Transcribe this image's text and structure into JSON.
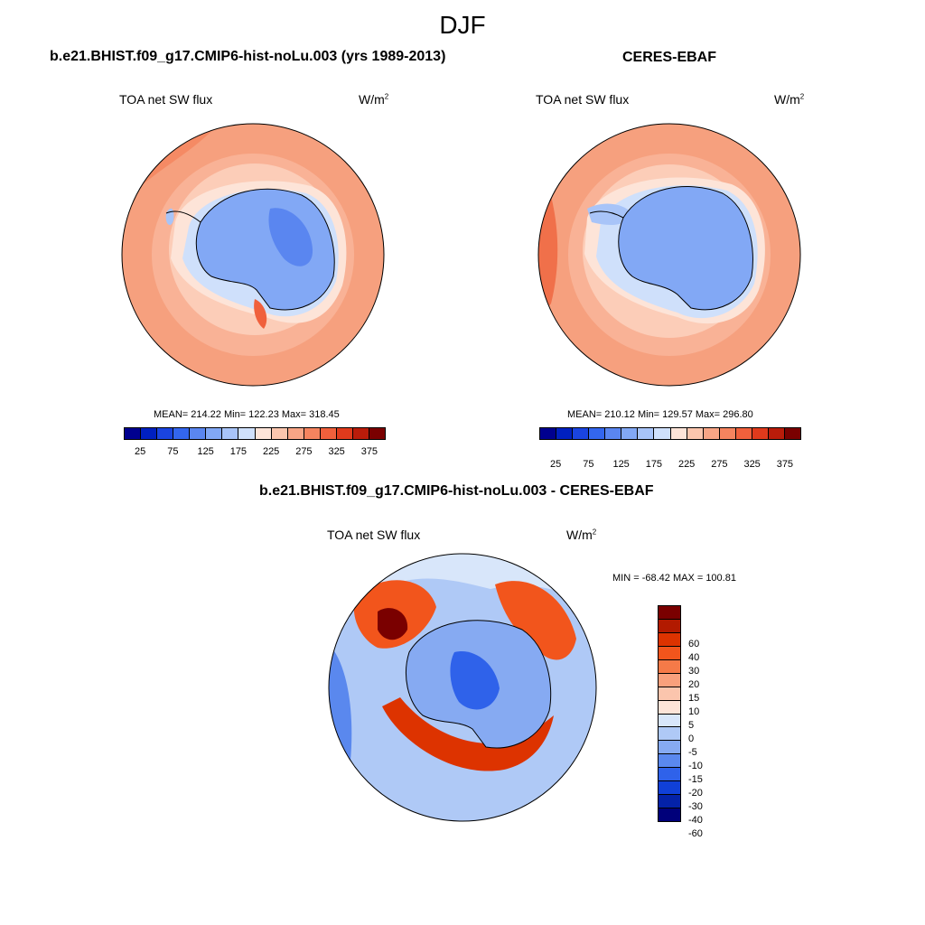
{
  "figure": {
    "title": "DJF"
  },
  "panels": [
    {
      "title": "b.e21.BHIST.f09_g17.CMIP6-hist-noLu.003 (yrs 1989-2013)",
      "variable": "TOA net SW flux",
      "units_base": "W/m",
      "units_exp": "2",
      "stats": "MEAN= 214.22  Min= 122.23  Max= 318.45"
    },
    {
      "title": "CERES-EBAF",
      "variable": "TOA net SW flux",
      "units_base": "W/m",
      "units_exp": "2",
      "stats": "MEAN= 210.12  Min= 129.57  Max= 296.80"
    },
    {
      "title": "b.e21.BHIST.f09_g17.CMIP6-hist-noLu.003 - CERES-EBAF",
      "variable": "TOA net SW flux",
      "units_base": "W/m",
      "units_exp": "2",
      "stats": "MIN = -68.42 MAX = 100.81"
    }
  ],
  "colorbar_abs": {
    "tick_labels": [
      "25",
      "75",
      "125",
      "175",
      "225",
      "275",
      "325",
      "375"
    ],
    "colors": [
      "#00008f",
      "#0020c0",
      "#1a44e0",
      "#3366ee",
      "#5a86f0",
      "#82a8f5",
      "#a8c4f8",
      "#cfe0fb",
      "#fde4d8",
      "#fbc6ae",
      "#f8a586",
      "#f5845f",
      "#f0603c",
      "#e03a1c",
      "#b91c0a",
      "#7a0000"
    ]
  },
  "colorbar_diff": {
    "tick_labels": [
      "60",
      "40",
      "30",
      "20",
      "15",
      "10",
      "5",
      "0",
      "-5",
      "-10",
      "-15",
      "-20",
      "-30",
      "-40",
      "-60"
    ],
    "colors": [
      "#7a0000",
      "#b21a00",
      "#dd3300",
      "#f2551c",
      "#f57a48",
      "#f8a07c",
      "#fbc5ad",
      "#fde4d8",
      "#d8e6fa",
      "#afc9f6",
      "#86aaf2",
      "#5a88ee",
      "#2f62ea",
      "#1040d8",
      "#0422a8",
      "#00007a"
    ]
  },
  "chart_data": {
    "type": "heatmap",
    "title": "DJF",
    "projection": "south polar stereographic",
    "maps": [
      {
        "name": "b.e21.BHIST.f09_g17.CMIP6-hist-noLu.003 (yrs 1989-2013)",
        "variable": "TOA net SW flux",
        "units": "W/m2",
        "mean": 214.22,
        "min": 122.23,
        "max": 318.45,
        "contour_levels": [
          25,
          50,
          75,
          100,
          125,
          150,
          175,
          200,
          225,
          250,
          275,
          300,
          325,
          350,
          375
        ]
      },
      {
        "name": "CERES-EBAF",
        "variable": "TOA net SW flux",
        "units": "W/m2",
        "mean": 210.12,
        "min": 129.57,
        "max": 296.8,
        "contour_levels": [
          25,
          50,
          75,
          100,
          125,
          150,
          175,
          200,
          225,
          250,
          275,
          300,
          325,
          350,
          375
        ]
      },
      {
        "name": "b.e21.BHIST.f09_g17.CMIP6-hist-noLu.003 - CERES-EBAF",
        "variable": "TOA net SW flux",
        "units": "W/m2",
        "min": -68.42,
        "max": 100.81,
        "contour_levels": [
          -60,
          -40,
          -30,
          -20,
          -15,
          -10,
          -5,
          0,
          5,
          10,
          15,
          20,
          30,
          40,
          60
        ]
      }
    ]
  }
}
